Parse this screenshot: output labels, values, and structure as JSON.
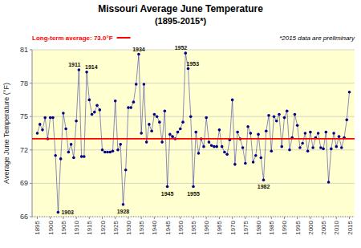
{
  "chart_data": {
    "type": "line",
    "title": "Missouri Average June Temperature",
    "subtitle": "(1895-2015*)",
    "y_label": "Average June Temperature (°F)",
    "note": "*2015 data are preliminary",
    "color": "#00008B",
    "marker": "circle",
    "grid": "y",
    "ylim": [
      66.0,
      81.0
    ],
    "yticks": [
      66.0,
      69.0,
      72.0,
      75.0,
      78.0,
      81.0
    ],
    "xlim": [
      1893,
      2017
    ],
    "xticks": [
      1895,
      1900,
      1905,
      1910,
      1915,
      1920,
      1925,
      1930,
      1935,
      1940,
      1945,
      1950,
      1955,
      1960,
      1965,
      1970,
      1975,
      1980,
      1985,
      1990,
      1995,
      2000,
      2005,
      2010,
      2015
    ],
    "reference_line": {
      "value": 73.0,
      "label": "Long-term average: 73.0°F",
      "color": "#FF0000"
    },
    "x": [
      1895,
      1896,
      1897,
      1898,
      1899,
      1900,
      1901,
      1902,
      1903,
      1904,
      1905,
      1906,
      1907,
      1908,
      1909,
      1910,
      1911,
      1912,
      1913,
      1914,
      1915,
      1916,
      1917,
      1918,
      1919,
      1920,
      1921,
      1922,
      1923,
      1924,
      1925,
      1926,
      1927,
      1928,
      1929,
      1930,
      1931,
      1932,
      1933,
      1934,
      1935,
      1936,
      1937,
      1938,
      1939,
      1940,
      1941,
      1942,
      1943,
      1944,
      1945,
      1946,
      1947,
      1948,
      1949,
      1950,
      1951,
      1952,
      1953,
      1954,
      1955,
      1956,
      1957,
      1958,
      1959,
      1960,
      1961,
      1962,
      1963,
      1964,
      1965,
      1966,
      1967,
      1968,
      1969,
      1970,
      1971,
      1972,
      1973,
      1974,
      1975,
      1976,
      1977,
      1978,
      1979,
      1980,
      1981,
      1982,
      1983,
      1984,
      1985,
      1986,
      1987,
      1988,
      1989,
      1990,
      1991,
      1992,
      1993,
      1994,
      1995,
      1996,
      1997,
      1998,
      1999,
      2000,
      2001,
      2002,
      2003,
      2004,
      2005,
      2006,
      2007,
      2008,
      2009,
      2010,
      2011,
      2012,
      2013,
      2014,
      2015
    ],
    "values": [
      73.5,
      74.3,
      73.8,
      74.9,
      73.0,
      74.9,
      74.9,
      71.5,
      66.4,
      71.2,
      75.3,
      73.9,
      71.8,
      72.5,
      71.3,
      74.6,
      79.2,
      71.4,
      71.4,
      79.0,
      76.5,
      75.2,
      75.4,
      76.0,
      75.6,
      72.0,
      71.8,
      71.8,
      71.8,
      71.9,
      76.4,
      72.0,
      72.5,
      67.1,
      70.2,
      75.8,
      75.8,
      76.3,
      77.9,
      80.6,
      73.5,
      77.9,
      72.7,
      74.3,
      73.7,
      75.2,
      75.0,
      74.5,
      72.7,
      75.5,
      68.7,
      73.4,
      73.2,
      73.0,
      73.6,
      73.9,
      74.5,
      80.7,
      79.3,
      75.0,
      68.7,
      73.6,
      71.7,
      73.0,
      72.3,
      74.9,
      72.7,
      72.4,
      72.3,
      72.3,
      73.8,
      72.3,
      71.8,
      71.6,
      72.9,
      76.5,
      70.7,
      73.6,
      73.0,
      72.2,
      70.8,
      74.1,
      73.5,
      70.9,
      71.5,
      73.4,
      71.3,
      69.3,
      73.7,
      75.1,
      71.9,
      75.0,
      74.6,
      75.2,
      72.3,
      74.9,
      75.5,
      72.0,
      73.1,
      75.2,
      74.2,
      72.2,
      72.6,
      73.5,
      71.9,
      73.6,
      72.2,
      73.1,
      73.5,
      72.2,
      72.1,
      73.6,
      69.1,
      72.1,
      73.5,
      72.3,
      73.2,
      72.2,
      73.1,
      74.7,
      77.2
    ],
    "annotations": [
      {
        "text": "1903",
        "x": 1903,
        "y": 66.4
      },
      {
        "text": "1911",
        "x": 1911,
        "y": 79.2
      },
      {
        "text": "1914",
        "x": 1914,
        "y": 79.0
      },
      {
        "text": "1928",
        "x": 1928,
        "y": 67.1
      },
      {
        "text": "1934",
        "x": 1934,
        "y": 80.6
      },
      {
        "text": "1945",
        "x": 1945,
        "y": 68.7
      },
      {
        "text": "1952",
        "x": 1952,
        "y": 80.7
      },
      {
        "text": "1953",
        "x": 1953,
        "y": 79.3
      },
      {
        "text": "1955",
        "x": 1955,
        "y": 68.7
      },
      {
        "text": "1982",
        "x": 1982,
        "y": 69.3
      }
    ]
  }
}
